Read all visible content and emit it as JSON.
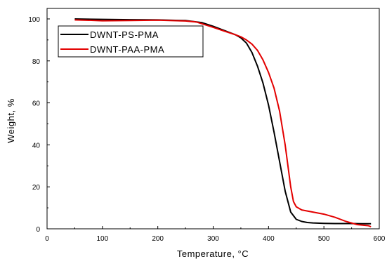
{
  "chart_data": {
    "type": "line",
    "xlabel": "Temperature, °C",
    "ylabel": "Weight, %",
    "xlim": [
      0,
      600
    ],
    "ylim": [
      0,
      105
    ],
    "xticks": [
      0,
      100,
      200,
      300,
      400,
      500,
      600
    ],
    "yticks": [
      0,
      20,
      40,
      60,
      80,
      100
    ],
    "grid": false,
    "legend_position": "top-left",
    "series": [
      {
        "name": "DWNT-PS-PMA",
        "color": "#000000",
        "x": [
          50,
          100,
          150,
          200,
          250,
          280,
          300,
          320,
          340,
          350,
          360,
          370,
          380,
          390,
          400,
          410,
          420,
          430,
          440,
          450,
          460,
          470,
          480,
          500,
          520,
          550,
          570,
          585
        ],
        "y": [
          100,
          99.8,
          99.6,
          99.5,
          99.2,
          98.2,
          96.5,
          94.5,
          92.5,
          91,
          88.5,
          84,
          77.5,
          69.5,
          59,
          46,
          32,
          18,
          8,
          4.5,
          3.5,
          3,
          2.8,
          2.6,
          2.5,
          2.5,
          2.4,
          2.4
        ]
      },
      {
        "name": "DWNT-PAA-PMA",
        "color": "#e30000",
        "x": [
          50,
          80,
          100,
          150,
          200,
          250,
          270,
          300,
          320,
          340,
          350,
          360,
          370,
          380,
          390,
          400,
          410,
          420,
          430,
          440,
          445,
          450,
          460,
          480,
          500,
          520,
          540,
          560,
          580,
          585
        ],
        "y": [
          99.5,
          99.3,
          99.1,
          99.2,
          99.4,
          99,
          98.5,
          96,
          94.2,
          92.5,
          91.5,
          90,
          88,
          85,
          80.5,
          74.5,
          67,
          56,
          40,
          20,
          13,
          10.5,
          9,
          8,
          7,
          5.5,
          3.5,
          2,
          1.5,
          1
        ]
      }
    ]
  }
}
